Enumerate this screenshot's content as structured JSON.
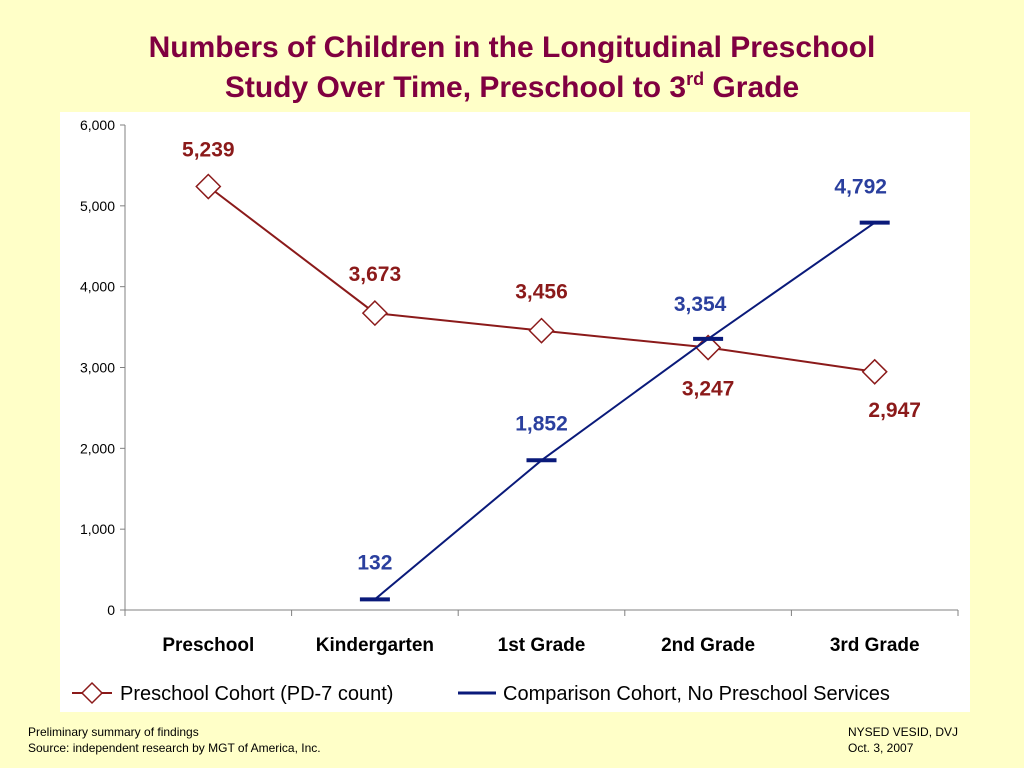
{
  "title_line1": "Numbers of Children in the Longitudinal Preschool",
  "title_line2_prefix": "Study Over Time, Preschool to 3",
  "title_line2_sup": "rd",
  "title_line2_suffix": " Grade",
  "footer": {
    "left_line1": "Preliminary summary of findings",
    "left_line2": "Source: independent research by MGT of America, Inc.",
    "right_line1": "NYSED VESID, DVJ",
    "right_line2": "Oct. 3, 2007"
  },
  "chart_data": {
    "type": "line",
    "categories": [
      "Preschool",
      "Kindergarten",
      "1st Grade",
      "2nd Grade",
      "3rd Grade"
    ],
    "ylim": [
      0,
      6000
    ],
    "yticks": [
      0,
      1000,
      2000,
      3000,
      4000,
      5000,
      6000
    ],
    "ytick_labels": [
      "0",
      "1,000",
      "2,000",
      "3,000",
      "4,000",
      "5,000",
      "6,000"
    ],
    "legend_position": "bottom",
    "grid": false,
    "series": [
      {
        "name": "Preschool Cohort (PD-7 count)",
        "color": "#8B1A1A",
        "marker": "diamond",
        "values": [
          5239,
          3673,
          3456,
          3247,
          2947
        ],
        "labels": [
          "5,239",
          "3,673",
          "3,456",
          "3,247",
          "2,947"
        ]
      },
      {
        "name": "Comparison Cohort, No Preschool Services",
        "color": "#0A1A7A",
        "label_color": "#2A3F9E",
        "marker": "dash",
        "values": [
          null,
          132,
          1852,
          3354,
          4792
        ],
        "labels": [
          null,
          "132",
          "1,852",
          "3,354",
          "4,792"
        ]
      }
    ]
  }
}
